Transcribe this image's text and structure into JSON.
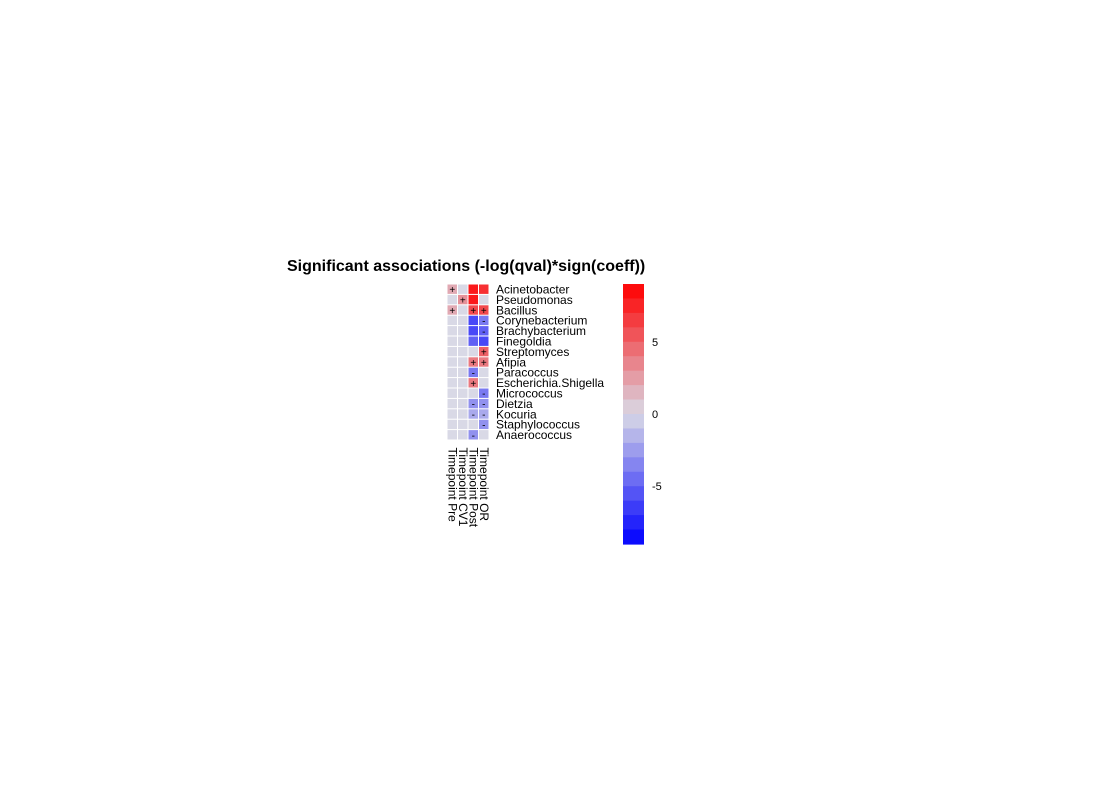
{
  "chart_data": {
    "type": "heatmap",
    "title": "Significant associations (-log(qval)*sign(coeff))",
    "rows": [
      "Acinetobacter",
      "Pseudomonas",
      "Bacillus",
      "Corynebacterium",
      "Brachybacterium",
      "Finegoldia",
      "Streptomyces",
      "Afipia",
      "Paracoccus",
      "Escherichia.Shigella",
      "Micrococcus",
      "Dietzia",
      "Kocuria",
      "Staphylococcus",
      "Anaerococcus"
    ],
    "columns": [
      "Timepoint Pre",
      "Timepoint CV1",
      "Timepoint Post",
      "Timepoint OR"
    ],
    "values": [
      [
        2,
        0,
        8,
        7
      ],
      [
        0,
        3,
        8,
        0
      ],
      [
        2,
        0,
        6,
        6
      ],
      [
        0,
        0,
        -6,
        -4
      ],
      [
        0,
        0,
        -6,
        -5
      ],
      [
        0,
        0,
        -5,
        -6
      ],
      [
        0,
        0,
        0,
        5
      ],
      [
        0,
        0,
        4,
        4
      ],
      [
        0,
        0,
        -4,
        0
      ],
      [
        0,
        0,
        4,
        0
      ],
      [
        0,
        0,
        0,
        -4
      ],
      [
        0,
        0,
        -3,
        -3
      ],
      [
        0,
        0,
        -2,
        -2
      ],
      [
        0,
        0,
        0,
        -3
      ],
      [
        0,
        0,
        -3,
        0
      ]
    ],
    "signs": [
      [
        "+",
        "",
        "",
        ""
      ],
      [
        "",
        "+",
        "",
        ""
      ],
      [
        "+",
        "",
        "+",
        "+"
      ],
      [
        "",
        "",
        "",
        "-"
      ],
      [
        "",
        "",
        "",
        "-"
      ],
      [
        "",
        "",
        "",
        ""
      ],
      [
        "",
        "",
        "",
        "+"
      ],
      [
        "",
        "",
        "+",
        "+"
      ],
      [
        "",
        "",
        "-",
        ""
      ],
      [
        "",
        "",
        "+",
        ""
      ],
      [
        "",
        "",
        "",
        "-"
      ],
      [
        "",
        "",
        "-",
        "-"
      ],
      [
        "",
        "",
        "-",
        "-"
      ],
      [
        "",
        "",
        "",
        "-"
      ],
      [
        "",
        "",
        "-",
        ""
      ]
    ],
    "colorbar": {
      "range": [
        -9,
        9
      ],
      "ticks": [
        {
          "value": 5,
          "label": "5"
        },
        {
          "value": 0,
          "label": "0"
        },
        {
          "value": -5,
          "label": "-5"
        }
      ],
      "low_color": "#0000ff",
      "mid_color": "#d9d9e6",
      "high_color": "#ff0000",
      "steps": 18
    }
  }
}
